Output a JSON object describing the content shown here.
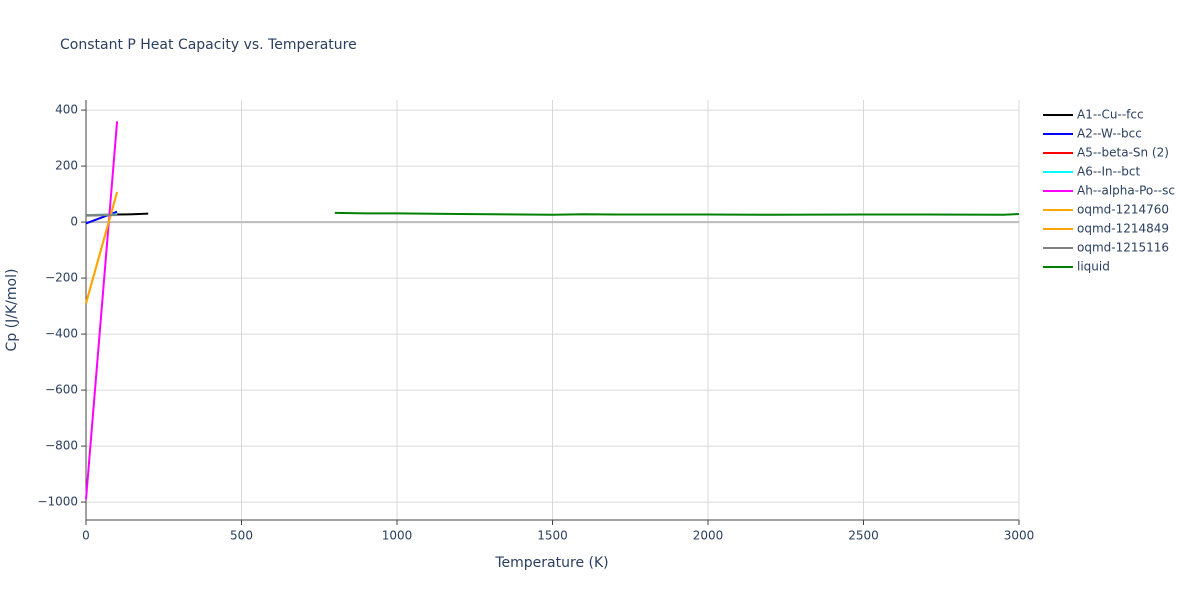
{
  "chart_data": {
    "type": "line",
    "title": "Constant P Heat Capacity vs. Temperature",
    "x_label": "Temperature (K)",
    "y_label": "Cp (J/K/mol)",
    "xlim": [
      0,
      3000
    ],
    "xticks": [
      0,
      500,
      1000,
      1500,
      2000,
      2500,
      3000
    ],
    "ylim": [
      -1064,
      436
    ],
    "yticks": [
      {
        "value": -1000,
        "label": "−1000"
      },
      {
        "value": -800,
        "label": "−800"
      },
      {
        "value": -600,
        "label": "−600"
      },
      {
        "value": -400,
        "label": "−400"
      },
      {
        "value": -200,
        "label": "−200"
      },
      0,
      200,
      400
    ],
    "grid": true,
    "series": [
      {
        "name": "A1--Cu--fcc",
        "color": "#000000",
        "x": [
          0,
          50,
          100,
          150,
          200
        ],
        "values": [
          24,
          25,
          27,
          28,
          30
        ]
      },
      {
        "name": "A2--W--bcc",
        "color": "#0000ff",
        "x": [
          0,
          100
        ],
        "values": [
          -5,
          37
        ]
      },
      {
        "name": "A5--beta-Sn (2)",
        "color": "#ff0000",
        "x": [
          0,
          100
        ],
        "values": [
          25,
          27
        ]
      },
      {
        "name": "A6--In--bct",
        "color": "#00ffff",
        "x": [
          0,
          100
        ],
        "values": [
          25,
          27
        ]
      },
      {
        "name": "Ah--alpha-Po--sc",
        "color": "#ff00ff",
        "x": [
          0,
          100
        ],
        "values": [
          -990,
          360
        ]
      },
      {
        "name": "oqmd-1214760",
        "color": "#ffa500",
        "x": [
          0,
          100
        ],
        "values": [
          -290,
          107
        ]
      },
      {
        "name": "oqmd-1214849",
        "color": "#ffa500",
        "x": [
          0,
          100
        ],
        "values": [
          -290,
          107
        ]
      },
      {
        "name": "oqmd-1215116",
        "color": "#808080",
        "x": [
          0,
          100
        ],
        "values": [
          25,
          25
        ]
      },
      {
        "name": "liquid",
        "color": "#008000",
        "x": [
          800,
          900,
          1000,
          1200,
          1500,
          1600,
          1700,
          2000,
          2200,
          2500,
          2700,
          2950,
          3000
        ],
        "values": [
          33,
          31,
          31,
          29,
          26,
          28,
          27,
          27,
          26,
          27,
          27,
          26,
          29
        ]
      }
    ]
  }
}
